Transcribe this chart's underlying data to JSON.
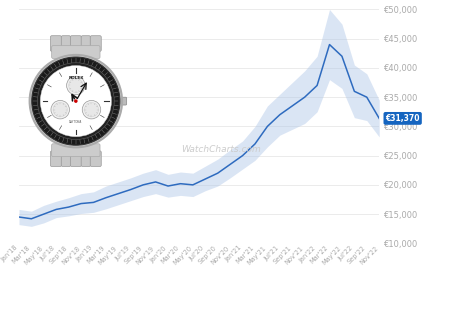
{
  "watermark": "WatchCharts.com",
  "label_price": "€31,370",
  "label_color": "#1565c0",
  "bg_color": "#ffffff",
  "line_color": "#2e6bbf",
  "band_color": "#aec6e8",
  "grid_color": "#e8e8e8",
  "tick_color": "#aaaaaa",
  "ylim": [
    10000,
    50000
  ],
  "yticks": [
    10000,
    15000,
    20000,
    25000,
    30000,
    35000,
    40000,
    45000,
    50000
  ],
  "x_labels": [
    "Jan'18",
    "Mar'18",
    "May'18",
    "Jul'18",
    "Sep'18",
    "Nov'18",
    "Jan'19",
    "Mar'19",
    "May'19",
    "Jul'19",
    "Sep'19",
    "Nov'19",
    "Jan'20",
    "Mar'20",
    "May'20",
    "Jul'20",
    "Sep'20",
    "Nov'20",
    "Jan'21",
    "Mar'21",
    "May'21",
    "Jul'21",
    "Sep'21",
    "Nov'21",
    "Jan'22",
    "Mar'22",
    "May'22",
    "Jul'22",
    "Sep'22",
    "Nov'22"
  ],
  "prices": [
    14500,
    14200,
    15000,
    15800,
    16200,
    16800,
    17000,
    17800,
    18500,
    19200,
    20000,
    20500,
    19800,
    20200,
    20000,
    21000,
    22000,
    23500,
    25000,
    27000,
    30000,
    32000,
    33500,
    35000,
    37000,
    44000,
    42000,
    36000,
    35000,
    31370
  ],
  "upper_band": [
    15800,
    15500,
    16500,
    17200,
    17800,
    18500,
    18800,
    19800,
    20500,
    21200,
    22000,
    22600,
    21800,
    22200,
    22000,
    23200,
    24400,
    26000,
    27500,
    30000,
    33500,
    35500,
    37500,
    39500,
    42000,
    50000,
    47500,
    40500,
    39000,
    34500
  ],
  "lower_band": [
    13200,
    12900,
    13500,
    14400,
    14700,
    15100,
    15300,
    15900,
    16600,
    17300,
    18000,
    18500,
    17900,
    18200,
    18000,
    19000,
    19800,
    21200,
    22700,
    24200,
    26500,
    28500,
    29500,
    30500,
    32500,
    38000,
    36500,
    31500,
    31000,
    28200
  ]
}
